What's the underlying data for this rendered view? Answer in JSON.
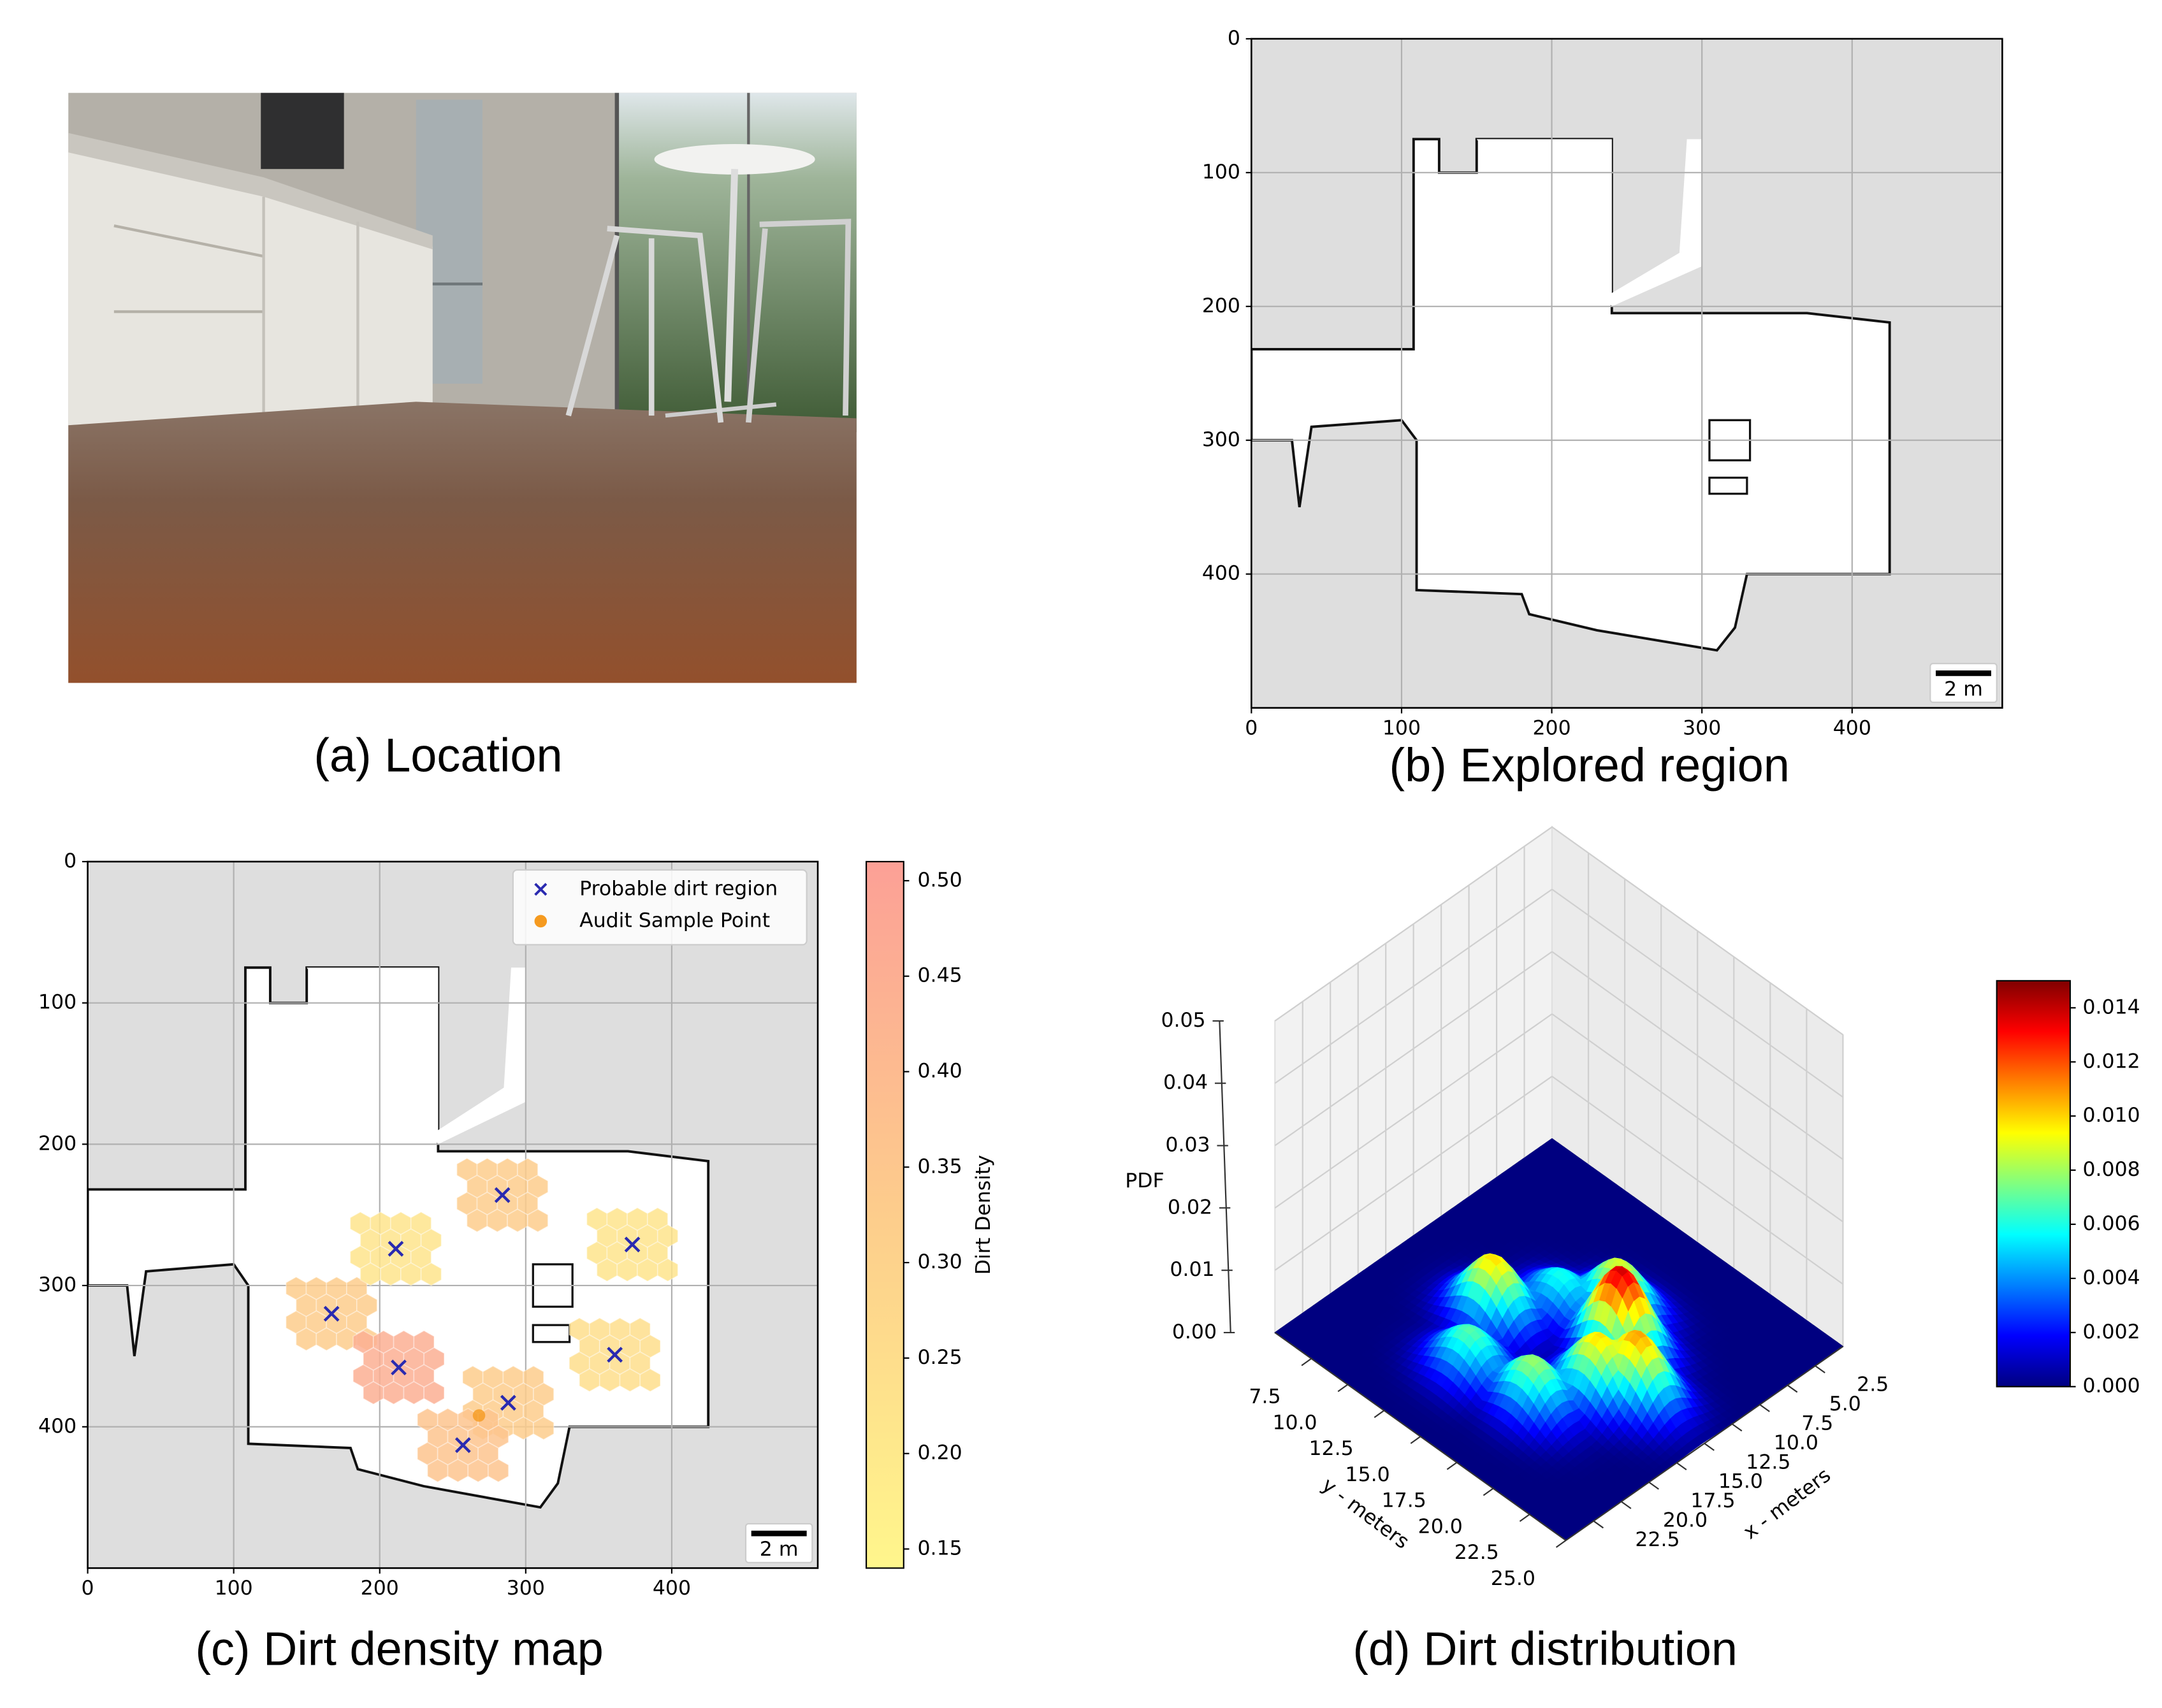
{
  "photo": {
    "caption": "(a) Location"
  },
  "chart_data": [
    {
      "type": "map",
      "title": "(b) Explored region",
      "xlim": [
        0,
        500
      ],
      "ylim": [
        500,
        0
      ],
      "xticks": [
        0,
        100,
        200,
        300,
        400
      ],
      "yticks": [
        0,
        100,
        200,
        300,
        400
      ],
      "grid": true,
      "scale_bar_label": "2 m"
    },
    {
      "type": "map",
      "title": "(c) Dirt density map",
      "xlim": [
        0,
        500
      ],
      "ylim": [
        500,
        0
      ],
      "xticks": [
        0,
        100,
        200,
        300,
        400
      ],
      "yticks": [
        0,
        100,
        200,
        300,
        400
      ],
      "grid": true,
      "scale_bar_label": "2 m",
      "legend": "upper right",
      "series": [
        {
          "name": "Probable dirt region",
          "marker": "x",
          "color": "#2a2ab0",
          "x": [
            167,
            211,
            213,
            284,
            373,
            361,
            288,
            257
          ],
          "y": [
            320,
            274,
            358,
            236,
            271,
            349,
            383,
            413
          ],
          "density": [
            0.33,
            0.22,
            0.45,
            0.33,
            0.22,
            0.25,
            0.33,
            0.36
          ]
        },
        {
          "name": "Audit Sample Point",
          "marker": "o",
          "color": "#f59a1f",
          "x": [
            268
          ],
          "y": [
            392
          ]
        }
      ],
      "colorbar": {
        "label": "Dirt Density",
        "lim": [
          0.14,
          0.51
        ],
        "ticks": [
          0.15,
          {
            "value": 0.2,
            "label": "0.20"
          },
          0.25,
          {
            "value": 0.3,
            "label": "0.30"
          },
          0.35,
          {
            "value": 0.4,
            "label": "0.40"
          },
          0.45,
          {
            "value": 0.5,
            "label": "0.50"
          }
        ]
      }
    },
    {
      "type": "surface3d",
      "title": "(d) Dirt distribution",
      "xlabel": "x - meters",
      "ylabel": "y - meters",
      "zlabel": "PDF",
      "xlim": [
        0,
        25
      ],
      "ylim": [
        5,
        25
      ],
      "zlim": [
        0,
        0.05
      ],
      "xticks": [
        2.5,
        {
          "value": 5,
          "label": "5.0"
        },
        7.5,
        {
          "value": 10,
          "label": "10.0"
        },
        12.5,
        {
          "value": 15,
          "label": "15.0"
        },
        17.5,
        {
          "value": 20,
          "label": "20.0"
        },
        22.5
      ],
      "yticks": [
        7.5,
        {
          "value": 10,
          "label": "10.0"
        },
        12.5,
        {
          "value": 15,
          "label": "15.0"
        },
        17.5,
        {
          "value": 20,
          "label": "20.0"
        },
        22.5,
        {
          "value": 25,
          "label": "25.0"
        }
      ],
      "zticks": [
        {
          "value": 0,
          "label": "0.00"
        },
        0.01,
        0.02,
        0.03,
        0.04,
        0.05
      ],
      "peaks": {
        "x": [
          8.4,
          10.6,
          10.7,
          14.2,
          18.7,
          18.1,
          14.4,
          12.9
        ],
        "y": [
          16.0,
          13.7,
          17.9,
          11.8,
          13.6,
          17.5,
          19.2,
          20.7
        ],
        "z": [
          0.009,
          0.006,
          0.014,
          0.01,
          0.007,
          0.008,
          0.01,
          0.011
        ]
      },
      "colorbar": {
        "lim": [
          0,
          0.015
        ],
        "ticks": [
          {
            "value": 0,
            "label": "0.000"
          },
          0.002,
          0.004,
          0.006,
          0.008,
          {
            "value": 0.01,
            "label": "0.010"
          },
          0.012,
          0.014
        ]
      }
    }
  ]
}
